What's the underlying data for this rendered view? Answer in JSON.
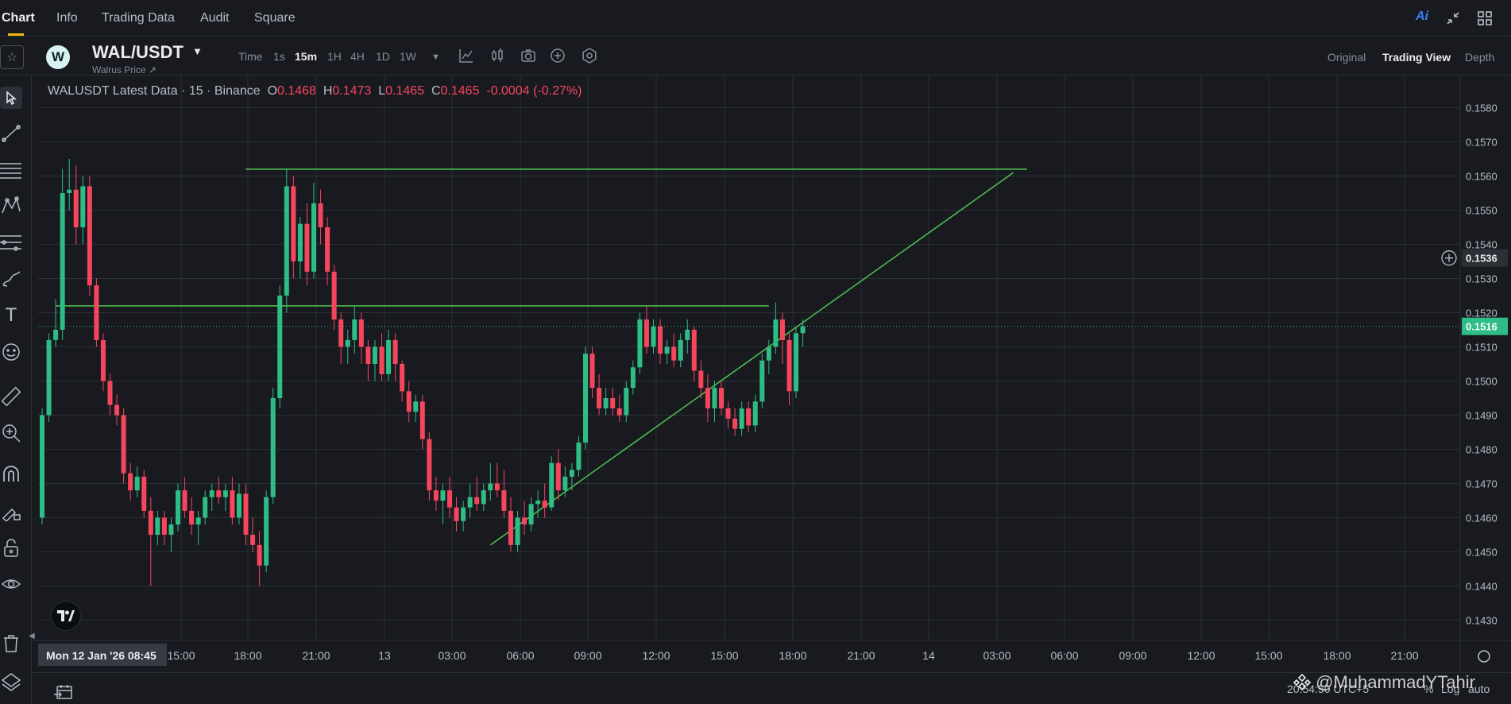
{
  "tabs": [
    "Chart",
    "Info",
    "Trading Data",
    "Audit",
    "Square"
  ],
  "top_right": {
    "ai_label": "Ai"
  },
  "pair": {
    "logo_letter": "W",
    "name": "WAL/USDT",
    "subtitle": "Walrus Price ↗"
  },
  "intervals": [
    "Time",
    "1s",
    "15m",
    "1H",
    "4H",
    "1D",
    "1W"
  ],
  "active_interval": "15m",
  "view_options": [
    "Original",
    "Trading View",
    "Depth"
  ],
  "active_view": "Trading View",
  "legend": {
    "title": "WALUSDT Latest Data · 15 · Binance",
    "o_label": "O",
    "o_value": "0.1468",
    "h_label": "H",
    "h_value": "0.1473",
    "l_label": "L",
    "l_value": "0.1465",
    "c_label": "C",
    "c_value": "0.1465",
    "change": "-0.0004 (-0.27%)"
  },
  "price_axis": {
    "ticks": [
      "0.1580",
      "0.1570",
      "0.1560",
      "0.1550",
      "0.1540",
      "0.1530",
      "0.1520",
      "0.1510",
      "0.1500",
      "0.1490",
      "0.1480",
      "0.1470",
      "0.1460",
      "0.1450",
      "0.1440",
      "0.1430"
    ],
    "hover_price": "0.1536",
    "last_price": "0.1516"
  },
  "time_axis": {
    "ticks": [
      "15:00",
      "18:00",
      "21:00",
      "13",
      "03:00",
      "06:00",
      "09:00",
      "12:00",
      "15:00",
      "18:00",
      "21:00",
      "14",
      "03:00",
      "06:00",
      "09:00",
      "12:00",
      "15:00",
      "18:00",
      "21:00"
    ],
    "cursor_label": "Mon 12 Jan '26   08:45"
  },
  "bottom_right": {
    "time_text": "20:54:50 UTC+5",
    "pct": "%",
    "log": "Log",
    "auto": "auto"
  },
  "watermark": "@MuhammadYTahir",
  "colors": {
    "up": "#2ebd85",
    "down": "#f6465d",
    "trendline": "#4cbb4c",
    "background": "#181a20",
    "accent": "#f0b90b"
  },
  "chart_data": {
    "type": "candlestick",
    "title": "WALUSDT Latest Data · 15 · Binance",
    "interval": "15m",
    "ylim": [
      0.1425,
      0.1585
    ],
    "y_ticks": [
      0.158,
      0.157,
      0.156,
      0.155,
      0.154,
      0.153,
      0.152,
      0.151,
      0.15,
      0.149,
      0.148,
      0.147,
      0.146,
      0.145,
      0.144,
      0.143
    ],
    "candles": [
      [
        0.146,
        0.1492,
        0.1458,
        0.149
      ],
      [
        0.149,
        0.1514,
        0.1488,
        0.1512
      ],
      [
        0.1512,
        0.1524,
        0.151,
        0.1515
      ],
      [
        0.1515,
        0.1562,
        0.1512,
        0.1555
      ],
      [
        0.1555,
        0.1565,
        0.155,
        0.1556
      ],
      [
        0.1556,
        0.1563,
        0.154,
        0.1545
      ],
      [
        0.1545,
        0.156,
        0.154,
        0.1557
      ],
      [
        0.1557,
        0.156,
        0.1525,
        0.1528
      ],
      [
        0.1528,
        0.153,
        0.151,
        0.1512
      ],
      [
        0.1512,
        0.1514,
        0.1497,
        0.15
      ],
      [
        0.15,
        0.1502,
        0.149,
        0.1493
      ],
      [
        0.1493,
        0.1496,
        0.1487,
        0.149
      ],
      [
        0.149,
        0.1492,
        0.147,
        0.1473
      ],
      [
        0.1473,
        0.1476,
        0.1465,
        0.1468
      ],
      [
        0.1468,
        0.1475,
        0.1466,
        0.1472
      ],
      [
        0.1472,
        0.1474,
        0.146,
        0.1462
      ],
      [
        0.1462,
        0.1466,
        0.144,
        0.1455
      ],
      [
        0.1455,
        0.1462,
        0.1452,
        0.146
      ],
      [
        0.146,
        0.1462,
        0.1452,
        0.1455
      ],
      [
        0.1455,
        0.146,
        0.145,
        0.1458
      ],
      [
        0.1458,
        0.147,
        0.1456,
        0.1468
      ],
      [
        0.1468,
        0.1472,
        0.146,
        0.1462
      ],
      [
        0.1462,
        0.1466,
        0.1455,
        0.1458
      ],
      [
        0.1458,
        0.1462,
        0.1452,
        0.146
      ],
      [
        0.146,
        0.1468,
        0.1458,
        0.1466
      ],
      [
        0.1466,
        0.147,
        0.1462,
        0.1468
      ],
      [
        0.1468,
        0.1472,
        0.1464,
        0.1466
      ],
      [
        0.1466,
        0.147,
        0.1462,
        0.1468
      ],
      [
        0.1468,
        0.1472,
        0.1458,
        0.146
      ],
      [
        0.146,
        0.147,
        0.1458,
        0.1467
      ],
      [
        0.1467,
        0.147,
        0.1452,
        0.1455
      ],
      [
        0.1455,
        0.146,
        0.145,
        0.1452
      ],
      [
        0.1452,
        0.1456,
        0.144,
        0.1446
      ],
      [
        0.1446,
        0.1468,
        0.1444,
        0.1466
      ],
      [
        0.1466,
        0.1498,
        0.1464,
        0.1495
      ],
      [
        0.1495,
        0.1528,
        0.1492,
        0.1525
      ],
      [
        0.1525,
        0.1562,
        0.152,
        0.1557
      ],
      [
        0.1557,
        0.156,
        0.153,
        0.1535
      ],
      [
        0.1535,
        0.1548,
        0.153,
        0.1546
      ],
      [
        0.1546,
        0.1552,
        0.1528,
        0.1532
      ],
      [
        0.1532,
        0.1558,
        0.153,
        0.1552
      ],
      [
        0.1552,
        0.1556,
        0.154,
        0.1545
      ],
      [
        0.1545,
        0.1548,
        0.1528,
        0.1532
      ],
      [
        0.1532,
        0.1534,
        0.1515,
        0.1518
      ],
      [
        0.1518,
        0.152,
        0.1505,
        0.151
      ],
      [
        0.151,
        0.1515,
        0.1505,
        0.1512
      ],
      [
        0.1512,
        0.1522,
        0.1508,
        0.1518
      ],
      [
        0.1518,
        0.152,
        0.1505,
        0.151
      ],
      [
        0.151,
        0.1512,
        0.15,
        0.1505
      ],
      [
        0.1505,
        0.1512,
        0.15,
        0.151
      ],
      [
        0.151,
        0.1514,
        0.15,
        0.1502
      ],
      [
        0.1502,
        0.1515,
        0.15,
        0.1512
      ],
      [
        0.1512,
        0.1514,
        0.15,
        0.1505
      ],
      [
        0.1505,
        0.1506,
        0.1494,
        0.1497
      ],
      [
        0.1497,
        0.15,
        0.1488,
        0.1491
      ],
      [
        0.1491,
        0.1496,
        0.1488,
        0.1494
      ],
      [
        0.1494,
        0.1496,
        0.148,
        0.1483
      ],
      [
        0.1483,
        0.1485,
        0.1465,
        0.1468
      ],
      [
        0.1468,
        0.1472,
        0.1462,
        0.1465
      ],
      [
        0.1465,
        0.147,
        0.1458,
        0.1468
      ],
      [
        0.1468,
        0.1472,
        0.146,
        0.1463
      ],
      [
        0.1463,
        0.1466,
        0.1456,
        0.1459
      ],
      [
        0.1459,
        0.1465,
        0.1456,
        0.1463
      ],
      [
        0.1463,
        0.147,
        0.146,
        0.1466
      ],
      [
        0.1466,
        0.1472,
        0.1462,
        0.1464
      ],
      [
        0.1464,
        0.147,
        0.1462,
        0.1468
      ],
      [
        0.1468,
        0.1476,
        0.1465,
        0.147
      ],
      [
        0.147,
        0.1476,
        0.1466,
        0.1468
      ],
      [
        0.1468,
        0.1474,
        0.146,
        0.1462
      ],
      [
        0.1462,
        0.1466,
        0.145,
        0.1452
      ],
      [
        0.1452,
        0.1462,
        0.145,
        0.146
      ],
      [
        0.146,
        0.1465,
        0.1455,
        0.1458
      ],
      [
        0.1458,
        0.1466,
        0.1456,
        0.1464
      ],
      [
        0.1464,
        0.1468,
        0.146,
        0.1465
      ],
      [
        0.1465,
        0.147,
        0.146,
        0.1463
      ],
      [
        0.1463,
        0.1478,
        0.1462,
        0.1476
      ],
      [
        0.1476,
        0.148,
        0.1465,
        0.1468
      ],
      [
        0.1468,
        0.1475,
        0.1466,
        0.1472
      ],
      [
        0.1472,
        0.1476,
        0.1468,
        0.1474
      ],
      [
        0.1474,
        0.1484,
        0.1472,
        0.1482
      ],
      [
        0.1482,
        0.151,
        0.148,
        0.1508
      ],
      [
        0.1508,
        0.151,
        0.1495,
        0.1498
      ],
      [
        0.1498,
        0.1502,
        0.149,
        0.1492
      ],
      [
        0.1492,
        0.1498,
        0.149,
        0.1495
      ],
      [
        0.1495,
        0.1498,
        0.149,
        0.1492
      ],
      [
        0.1492,
        0.1496,
        0.1488,
        0.149
      ],
      [
        0.149,
        0.15,
        0.1488,
        0.1498
      ],
      [
        0.1498,
        0.1506,
        0.1496,
        0.1504
      ],
      [
        0.1504,
        0.152,
        0.1502,
        0.1518
      ],
      [
        0.1518,
        0.1522,
        0.1508,
        0.151
      ],
      [
        0.151,
        0.1518,
        0.1508,
        0.1516
      ],
      [
        0.1516,
        0.1518,
        0.1505,
        0.1508
      ],
      [
        0.1508,
        0.1512,
        0.1505,
        0.151
      ],
      [
        0.151,
        0.1514,
        0.1504,
        0.1506
      ],
      [
        0.1506,
        0.1514,
        0.1504,
        0.1512
      ],
      [
        0.1512,
        0.1518,
        0.1508,
        0.1515
      ],
      [
        0.1515,
        0.1516,
        0.15,
        0.1503
      ],
      [
        0.1503,
        0.1506,
        0.1495,
        0.1498
      ],
      [
        0.1498,
        0.1502,
        0.1488,
        0.1492
      ],
      [
        0.1492,
        0.15,
        0.1488,
        0.1498
      ],
      [
        0.1498,
        0.15,
        0.149,
        0.1492
      ],
      [
        0.1492,
        0.1494,
        0.1486,
        0.1489
      ],
      [
        0.1489,
        0.1492,
        0.1484,
        0.1486
      ],
      [
        0.1486,
        0.1494,
        0.1484,
        0.1492
      ],
      [
        0.1492,
        0.1494,
        0.1485,
        0.1487
      ],
      [
        0.1487,
        0.1496,
        0.1485,
        0.1494
      ],
      [
        0.1494,
        0.1508,
        0.1492,
        0.1506
      ],
      [
        0.1506,
        0.1512,
        0.1502,
        0.151
      ],
      [
        0.151,
        0.1523,
        0.1508,
        0.1518
      ],
      [
        0.1518,
        0.152,
        0.1505,
        0.1512
      ],
      [
        0.1512,
        0.1514,
        0.1493,
        0.1497
      ],
      [
        0.1497,
        0.1516,
        0.1495,
        0.1514
      ],
      [
        0.1514,
        0.1518,
        0.151,
        0.1516
      ]
    ],
    "trendlines": [
      {
        "name": "upper-horizontal",
        "from": [
          30,
          0.1562
        ],
        "to": [
          145,
          0.1562
        ]
      },
      {
        "name": "middle-horizontal",
        "from": [
          2,
          0.1522
        ],
        "to": [
          107,
          0.1522
        ]
      },
      {
        "name": "rising-support",
        "from": [
          66,
          0.1452
        ],
        "to": [
          143,
          0.1561
        ]
      }
    ]
  }
}
